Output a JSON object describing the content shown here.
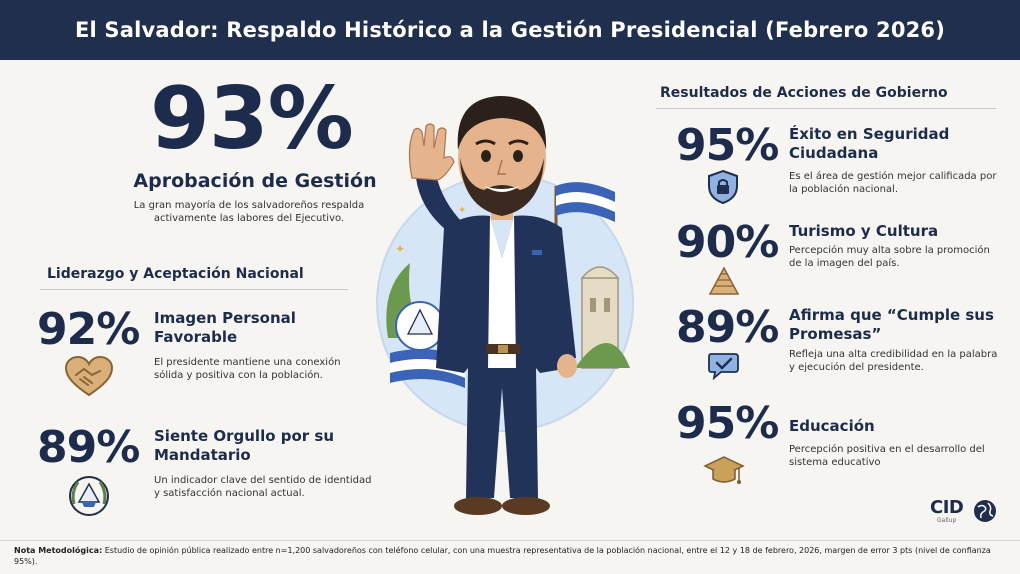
{
  "header": {
    "title": "El Salvador: Respaldo Histórico a la Gestión Presidencial (Febrero 2026)"
  },
  "hero": {
    "percent": "93%",
    "label": "Aprobación de Gestión",
    "description": "La gran mayoría de los salvadoreños respalda activamente las labores del Ejecutivo."
  },
  "leadership": {
    "title": "Liderazgo y Aceptación Nacional",
    "items": [
      {
        "percent": "92%",
        "title": "Imagen Personal Favorable",
        "description": "El presidente mantiene una conexión sólida y positiva con la población.",
        "icon": "handshake-heart-icon"
      },
      {
        "percent": "89%",
        "title": "Siente Orgullo por su Mandatario",
        "description": "Un indicador clave del sentido de identidad y satisfacción nacional actual.",
        "icon": "national-coat-of-arms-icon"
      }
    ]
  },
  "results": {
    "title": "Resultados de Acciones de Gobierno",
    "items": [
      {
        "percent": "95%",
        "title": "Éxito en Seguridad Ciudadana",
        "description": "Es el área de gestión mejor calificada por la población nacional.",
        "icon": "shield-lock-icon"
      },
      {
        "percent": "90%",
        "title": "Turismo y Cultura",
        "description": "Percepción muy alta sobre la promoción de la imagen del país.",
        "icon": "pyramid-icon"
      },
      {
        "percent": "89%",
        "title": "Afirma que “Cumple sus Promesas”",
        "description": "Refleja una alta credibilidad en la palabra y ejecución del presidente.",
        "icon": "chat-check-icon"
      },
      {
        "percent": "95%",
        "title": "Educación",
        "description": "Percepción positiva en el desarrollo del sistema educativo",
        "icon": "graduation-cap-icon"
      }
    ]
  },
  "logo": {
    "name": "CID",
    "sub": "Gallup"
  },
  "footer": {
    "label": "Nota Metodológica:",
    "text": "Estudio de opinión pública realizado entre n=1,200 salvadoreños con teléfono celular, con una muestra representativa de la población nacional, entre el 12 y 18 de febrero, 2026, margen de error 3 pts (nivel de confianza 95%)."
  },
  "colors": {
    "navy": "#1f2f4d",
    "flag_blue": "#3b64b8",
    "gold": "#c9a15a",
    "background": "#f6f5f1"
  }
}
